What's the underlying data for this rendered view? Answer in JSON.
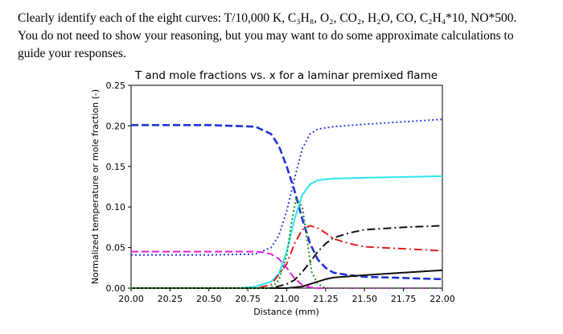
{
  "prompt": {
    "line1": "Clearly identify each of the eight curves: T/10,000 K, C₃H₈, O₂, CO₂, H₂O, CO, C₂H₄*10, NO*500.",
    "line2": "You do not need to show your reasoning, but you may want to do some approximate calculations to",
    "line3": "guide your responses."
  },
  "chart_data": {
    "type": "line",
    "title": "T and mole fractions vs. x for a laminar premixed flame",
    "xlabel": "Distance (mm)",
    "ylabel": "Normalized temperature or mole fraction (-)",
    "xlim": [
      20.0,
      22.0
    ],
    "ylim": [
      0.0,
      0.25
    ],
    "xticks": [
      "20.00",
      "20.25",
      "20.50",
      "20.75",
      "21.00",
      "21.25",
      "21.50",
      "21.75",
      "22.00"
    ],
    "yticks": [
      "0.00",
      "0.05",
      "0.10",
      "0.15",
      "0.20",
      "0.25"
    ],
    "grid": false,
    "series": [
      {
        "color": "#1f32d6",
        "style": "dashed",
        "width": 2.6,
        "x": [
          20.0,
          20.5,
          20.8,
          20.9,
          20.95,
          21.0,
          21.05,
          21.1,
          21.15,
          21.2,
          21.25,
          21.3,
          21.4,
          21.5,
          22.0
        ],
        "y": [
          0.201,
          0.201,
          0.199,
          0.19,
          0.175,
          0.15,
          0.12,
          0.085,
          0.055,
          0.035,
          0.025,
          0.019,
          0.016,
          0.014,
          0.011
        ]
      },
      {
        "color": "#2b3fe0",
        "style": "dotted",
        "width": 2.0,
        "x": [
          20.0,
          20.5,
          20.8,
          20.9,
          20.95,
          21.0,
          21.05,
          21.1,
          21.15,
          21.2,
          21.3,
          21.5,
          22.0
        ],
        "y": [
          0.041,
          0.041,
          0.042,
          0.05,
          0.065,
          0.095,
          0.135,
          0.172,
          0.19,
          0.196,
          0.199,
          0.202,
          0.208
        ]
      },
      {
        "color": "#2ce6ee",
        "style": "solid",
        "width": 2.0,
        "x": [
          20.0,
          20.7,
          20.8,
          20.9,
          20.95,
          21.0,
          21.05,
          21.1,
          21.15,
          21.2,
          21.3,
          21.5,
          22.0
        ],
        "y": [
          0.0,
          0.0,
          0.002,
          0.008,
          0.018,
          0.045,
          0.085,
          0.115,
          0.128,
          0.133,
          0.135,
          0.136,
          0.138
        ]
      },
      {
        "color": "#e02020",
        "style": "dashdot",
        "width": 2.0,
        "x": [
          20.0,
          20.8,
          20.9,
          21.0,
          21.05,
          21.1,
          21.15,
          21.2,
          21.25,
          21.3,
          21.4,
          21.5,
          21.7,
          22.0
        ],
        "y": [
          0.0,
          0.0,
          0.004,
          0.03,
          0.055,
          0.072,
          0.077,
          0.074,
          0.068,
          0.061,
          0.055,
          0.051,
          0.049,
          0.046
        ]
      },
      {
        "color": "#111111",
        "style": "dashdot",
        "width": 2.0,
        "x": [
          20.0,
          20.9,
          21.0,
          21.05,
          21.1,
          21.15,
          21.2,
          21.25,
          21.3,
          21.4,
          21.5,
          21.75,
          22.0
        ],
        "y": [
          0.0,
          0.0,
          0.005,
          0.01,
          0.02,
          0.032,
          0.045,
          0.055,
          0.062,
          0.068,
          0.072,
          0.075,
          0.077
        ]
      },
      {
        "color": "#111111",
        "style": "solid",
        "width": 2.0,
        "x": [
          20.0,
          21.0,
          21.1,
          21.15,
          21.2,
          21.25,
          21.3,
          21.5,
          21.75,
          22.0
        ],
        "y": [
          0.0,
          0.0,
          0.002,
          0.005,
          0.008,
          0.011,
          0.013,
          0.016,
          0.019,
          0.022
        ]
      },
      {
        "color": "#e020e0",
        "style": "dashed",
        "width": 2.0,
        "x": [
          20.0,
          20.8,
          20.85,
          20.9,
          20.95,
          21.0,
          21.05,
          21.1,
          21.15,
          21.2,
          22.0
        ],
        "y": [
          0.045,
          0.045,
          0.044,
          0.042,
          0.036,
          0.025,
          0.012,
          0.004,
          0.001,
          0.0,
          0.0
        ]
      },
      {
        "color": "#1a8f1a",
        "style": "dotted",
        "width": 2.0,
        "x": [
          20.0,
          20.9,
          20.95,
          21.0,
          21.03,
          21.06,
          21.1,
          21.13,
          21.16,
          21.2,
          21.25,
          22.0
        ],
        "y": [
          0.0,
          0.0,
          0.01,
          0.04,
          0.08,
          0.11,
          0.1,
          0.06,
          0.02,
          0.005,
          0.0,
          0.0
        ]
      }
    ]
  }
}
